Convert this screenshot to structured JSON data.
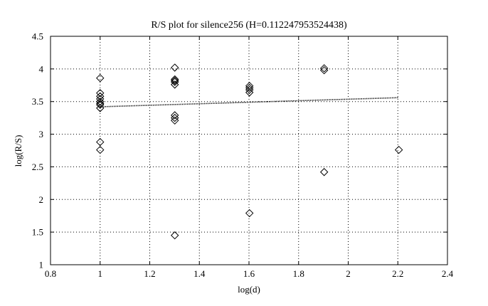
{
  "chart_data": {
    "type": "scatter",
    "title": "R/S plot for silence256 (H=0.112247953524438)",
    "xlabel": "log(d)",
    "ylabel": "log(R/S)",
    "xlim": [
      0.8,
      2.4
    ],
    "ylim": [
      1,
      4.5
    ],
    "xticks": [
      0.8,
      1,
      1.2,
      1.4,
      1.6,
      1.8,
      2,
      2.2,
      2.4
    ],
    "xtick_labels": [
      "0.8",
      "1",
      "1.2",
      "1.4",
      "1.6",
      "1.8",
      "2",
      "2.2",
      "2.4"
    ],
    "yticks": [
      1,
      1.5,
      2,
      2.5,
      3,
      3.5,
      4,
      4.5
    ],
    "ytick_labels": [
      "1",
      "1.5",
      "2",
      "2.5",
      "3",
      "3.5",
      "4",
      "4.5"
    ],
    "grid": true,
    "series": [
      {
        "marker": "diamond",
        "x": [
          1,
          1,
          1,
          1,
          1,
          1,
          1,
          1,
          1,
          1,
          1.301,
          1.301,
          1.301,
          1.301,
          1.301,
          1.301,
          1.301,
          1.301,
          1.301,
          1.602,
          1.602,
          1.602,
          1.602,
          1.602,
          1.903,
          1.903,
          1.903,
          2.204
        ],
        "y": [
          3.86,
          3.63,
          3.58,
          3.54,
          3.5,
          3.45,
          3.4,
          2.88,
          2.76,
          3.47,
          4.02,
          3.84,
          3.82,
          3.8,
          3.76,
          3.29,
          3.25,
          3.21,
          1.45,
          3.74,
          3.71,
          3.68,
          3.64,
          1.79,
          4.01,
          3.98,
          2.42,
          2.76
        ]
      },
      {
        "style": "dotted-line",
        "x": [
          1,
          2.204
        ],
        "y": [
          3.42,
          3.56
        ]
      }
    ]
  }
}
